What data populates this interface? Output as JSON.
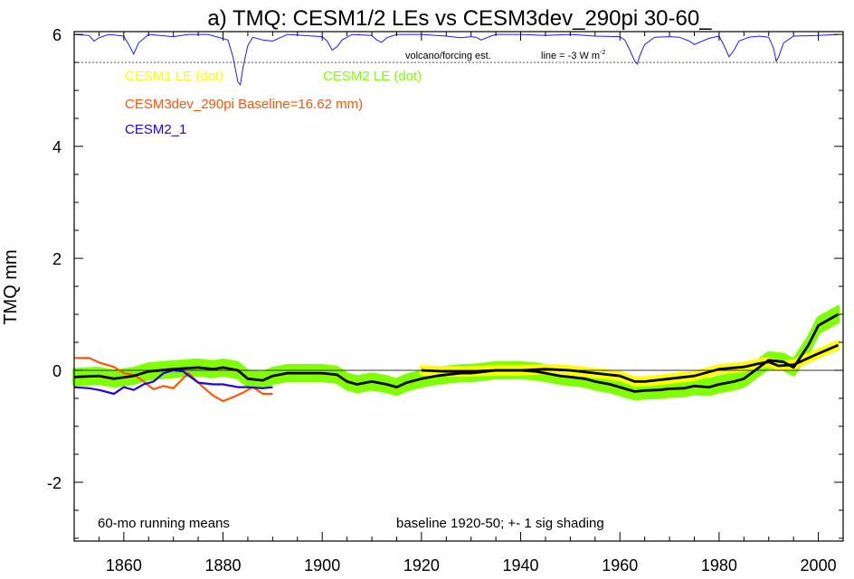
{
  "chart_data": {
    "type": "line",
    "title": "a) TMQ: CESM1/2 LEs vs CESM3dev_290pi 30-60_",
    "ylabel": "TMQ mm",
    "xlabel": "",
    "xlim": [
      1850,
      2005
    ],
    "ylim": [
      -3.05,
      6.05
    ],
    "x_ticks": [
      1860,
      1880,
      1900,
      1920,
      1940,
      1960,
      1980,
      2000
    ],
    "y_ticks": [
      -2,
      0,
      2,
      4,
      6
    ],
    "legend": {
      "cesm1": "CESM1 LE (dot)",
      "cesm2": "CESM2 LE (dot)",
      "cesm3": "CESM3dev_290pi Baseline=16.62 mm)",
      "cesm2_1": "CESM2_1"
    },
    "annotations": {
      "running_means": "60-mo running means",
      "baseline": "baseline 1920-50; +- 1 sig shading",
      "volcano": "volcano/forcing est.",
      "line_ref": "line = -3 W m",
      "line_ref_sup": "-2"
    },
    "colors": {
      "cesm1": "#ffff00",
      "cesm2": "#80ff00",
      "cesm3": "#ff5500",
      "cesm2_1": "#2200dd",
      "volcano": "#1a1aff"
    },
    "volcano_reference_level": 5.5,
    "volcano_series": {
      "x": [
        1850,
        1853,
        1854,
        1855,
        1857,
        1860,
        1861,
        1862,
        1863,
        1865,
        1870,
        1873,
        1877,
        1881,
        1882,
        1883,
        1883.5,
        1884,
        1885,
        1886,
        1888,
        1890,
        1893,
        1900,
        1901,
        1902,
        1903,
        1904,
        1906,
        1910,
        1911,
        1912,
        1913,
        1915,
        1920,
        1925,
        1928,
        1930,
        1931,
        1932,
        1934,
        1935,
        1940,
        1945,
        1950,
        1955,
        1960,
        1961,
        1962,
        1963,
        1963.5,
        1964,
        1965,
        1967,
        1970,
        1972,
        1974,
        1975,
        1976,
        1978,
        1980,
        1981,
        1982,
        1983,
        1984,
        1986,
        1988,
        1990,
        1991,
        1991.5,
        1992,
        1993,
        1995,
        2000,
        2004
      ],
      "values": [
        6.0,
        5.98,
        5.88,
        5.94,
        6.0,
        5.97,
        5.82,
        5.65,
        5.85,
        6.0,
        5.96,
        6.0,
        6.0,
        5.9,
        5.6,
        5.15,
        5.1,
        5.4,
        5.8,
        5.95,
        5.9,
        5.88,
        6.0,
        5.96,
        5.88,
        5.72,
        5.78,
        5.9,
        6.0,
        5.98,
        5.9,
        5.86,
        5.94,
        6.0,
        6.0,
        5.97,
        5.94,
        5.96,
        5.95,
        5.9,
        5.97,
        6.0,
        6.0,
        5.98,
        6.0,
        5.97,
        5.96,
        5.9,
        5.72,
        5.52,
        5.47,
        5.62,
        5.82,
        5.95,
        5.96,
        5.95,
        5.88,
        5.82,
        5.86,
        5.93,
        5.97,
        5.8,
        5.6,
        5.72,
        5.88,
        5.95,
        5.97,
        5.95,
        5.75,
        5.52,
        5.6,
        5.85,
        5.97,
        5.98,
        6.0
      ]
    },
    "series": [
      {
        "name": "CESM1 LE (dot)",
        "role": "mean_line_and_band",
        "x": [
          1920,
          1925,
          1930,
          1935,
          1940,
          1945,
          1950,
          1955,
          1960,
          1963,
          1965,
          1970,
          1975,
          1980,
          1985,
          1988,
          1990,
          1992,
          1995,
          2000,
          2004
        ],
        "values": [
          0.0,
          -0.02,
          -0.02,
          0.0,
          0.0,
          0.02,
          0.0,
          -0.05,
          -0.1,
          -0.2,
          -0.2,
          -0.15,
          -0.1,
          0.02,
          0.06,
          0.12,
          0.15,
          0.08,
          0.1,
          0.3,
          0.45
        ],
        "spread": 0.06
      },
      {
        "name": "CESM2 LE (dot)",
        "role": "mean_line_and_band",
        "x": [
          1850,
          1855,
          1858,
          1862,
          1865,
          1870,
          1875,
          1878,
          1880,
          1883,
          1885,
          1888,
          1890,
          1893,
          1895,
          1900,
          1903,
          1905,
          1907,
          1910,
          1913,
          1915,
          1917,
          1920,
          1923,
          1925,
          1928,
          1930,
          1933,
          1935,
          1937,
          1940,
          1943,
          1945,
          1948,
          1950,
          1953,
          1955,
          1958,
          1960,
          1963,
          1965,
          1968,
          1970,
          1973,
          1975,
          1978,
          1980,
          1983,
          1985,
          1988,
          1990,
          1993,
          1995,
          1998,
          2000,
          2004
        ],
        "values": [
          -0.12,
          -0.1,
          -0.15,
          -0.1,
          -0.02,
          0.02,
          0.05,
          0.02,
          0.05,
          0.0,
          -0.15,
          -0.18,
          -0.1,
          -0.05,
          -0.05,
          -0.05,
          -0.08,
          -0.2,
          -0.25,
          -0.2,
          -0.25,
          -0.3,
          -0.22,
          -0.15,
          -0.1,
          -0.08,
          -0.05,
          -0.05,
          -0.02,
          0.0,
          0.0,
          0.0,
          -0.02,
          -0.05,
          -0.1,
          -0.12,
          -0.15,
          -0.2,
          -0.25,
          -0.3,
          -0.38,
          -0.36,
          -0.35,
          -0.33,
          -0.32,
          -0.28,
          -0.3,
          -0.25,
          -0.2,
          -0.15,
          0.05,
          0.18,
          0.15,
          0.05,
          0.45,
          0.8,
          1.0
        ],
        "spread": 0.13
      },
      {
        "name": "CESM3dev_290pi",
        "x": [
          1850,
          1853,
          1855,
          1858,
          1860,
          1862,
          1864,
          1866,
          1868,
          1870,
          1873,
          1876,
          1878,
          1880,
          1882,
          1884,
          1886,
          1888,
          1890
        ],
        "values": [
          0.22,
          0.22,
          0.14,
          0.06,
          -0.05,
          -0.08,
          -0.2,
          -0.34,
          -0.28,
          -0.32,
          -0.05,
          -0.3,
          -0.45,
          -0.55,
          -0.48,
          -0.4,
          -0.3,
          -0.42,
          -0.42
        ]
      },
      {
        "name": "CESM2_1",
        "x": [
          1850,
          1853,
          1855,
          1858,
          1860,
          1862,
          1864,
          1866,
          1868,
          1870,
          1872,
          1875,
          1878,
          1880,
          1883,
          1885,
          1888,
          1890
        ],
        "values": [
          -0.3,
          -0.32,
          -0.35,
          -0.42,
          -0.3,
          -0.35,
          -0.25,
          -0.2,
          -0.05,
          0.0,
          -0.02,
          -0.22,
          -0.25,
          -0.25,
          -0.3,
          -0.3,
          -0.32,
          -0.3
        ]
      }
    ]
  }
}
